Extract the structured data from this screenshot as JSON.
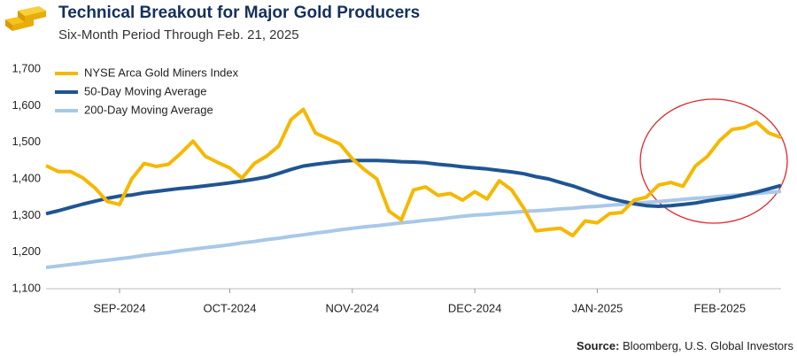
{
  "chart_data": {
    "type": "line",
    "title": "Technical Breakout for Major Gold Producers",
    "subtitle": "Six-Month Period Through Feb. 21, 2025",
    "source_label": "Source:",
    "source": "Bloomberg, U.S. Global Investors",
    "categories": [
      null,
      null,
      null,
      null,
      null,
      null,
      "SEP-2024",
      null,
      null,
      null,
      null,
      null,
      null,
      null,
      null,
      "OCT-2024",
      null,
      null,
      null,
      null,
      null,
      null,
      null,
      null,
      null,
      "NOV-2024",
      null,
      null,
      null,
      null,
      null,
      null,
      null,
      null,
      null,
      "DEC-2024",
      null,
      null,
      null,
      null,
      null,
      null,
      null,
      null,
      null,
      "JAN-2025",
      null,
      null,
      null,
      null,
      null,
      null,
      null,
      null,
      null,
      "FEB-2025",
      null,
      null,
      null,
      null,
      null
    ],
    "series": [
      {
        "name": "NYSE Arca Gold Miners Index",
        "color": "#f5b800",
        "values": [
          1436,
          1420,
          1420,
          1403,
          1375,
          1338,
          1330,
          1400,
          1442,
          1434,
          1440,
          1470,
          1503,
          1462,
          1445,
          1430,
          1402,
          1442,
          1462,
          1490,
          1562,
          1590,
          1525,
          1510,
          1495,
          1455,
          1425,
          1400,
          1312,
          1288,
          1370,
          1378,
          1355,
          1360,
          1342,
          1365,
          1345,
          1395,
          1370,
          1320,
          1258,
          1262,
          1265,
          1245,
          1285,
          1280,
          1305,
          1308,
          1342,
          1350,
          1383,
          1390,
          1380,
          1435,
          1462,
          1505,
          1535,
          1540,
          1555,
          1525,
          1513
        ]
      },
      {
        "name": "50-Day Moving Average",
        "color": "#1f5591",
        "values": [
          1305,
          1313,
          1322,
          1331,
          1339,
          1347,
          1353,
          1356,
          1362,
          1366,
          1370,
          1374,
          1377,
          1381,
          1385,
          1389,
          1394,
          1399,
          1405,
          1415,
          1426,
          1435,
          1440,
          1444,
          1448,
          1450,
          1450,
          1450,
          1449,
          1447,
          1446,
          1444,
          1440,
          1437,
          1433,
          1430,
          1427,
          1423,
          1419,
          1414,
          1406,
          1400,
          1390,
          1381,
          1369,
          1357,
          1347,
          1339,
          1332,
          1327,
          1325,
          1327,
          1330,
          1334,
          1340,
          1345,
          1350,
          1357,
          1364,
          1373,
          1382
        ]
      },
      {
        "name": "200-Day Moving Average",
        "color": "#a9c8e8",
        "values": [
          1158,
          1162,
          1166,
          1170,
          1174,
          1178,
          1182,
          1186,
          1191,
          1195,
          1199,
          1204,
          1208,
          1212,
          1216,
          1220,
          1225,
          1229,
          1234,
          1238,
          1243,
          1247,
          1252,
          1256,
          1261,
          1265,
          1269,
          1272,
          1276,
          1280,
          1283,
          1287,
          1290,
          1294,
          1298,
          1301,
          1303,
          1306,
          1308,
          1311,
          1313,
          1315,
          1318,
          1320,
          1323,
          1325,
          1328,
          1330,
          1333,
          1336,
          1338,
          1341,
          1344,
          1347,
          1349,
          1352,
          1355,
          1357,
          1360,
          1363,
          1366
        ]
      }
    ],
    "ylim": [
      1100,
      1700
    ],
    "yticks": [
      {
        "value": 1100,
        "label": "1,100"
      },
      {
        "value": 1200,
        "label": "1,200"
      },
      {
        "value": 1300,
        "label": "1,300"
      },
      {
        "value": 1400,
        "label": "1,400"
      },
      {
        "value": 1500,
        "label": "1,500"
      },
      {
        "value": 1600,
        "label": "1,600"
      },
      {
        "value": 1700,
        "label": "1,700"
      }
    ],
    "grid": false,
    "legend": "upper left"
  }
}
